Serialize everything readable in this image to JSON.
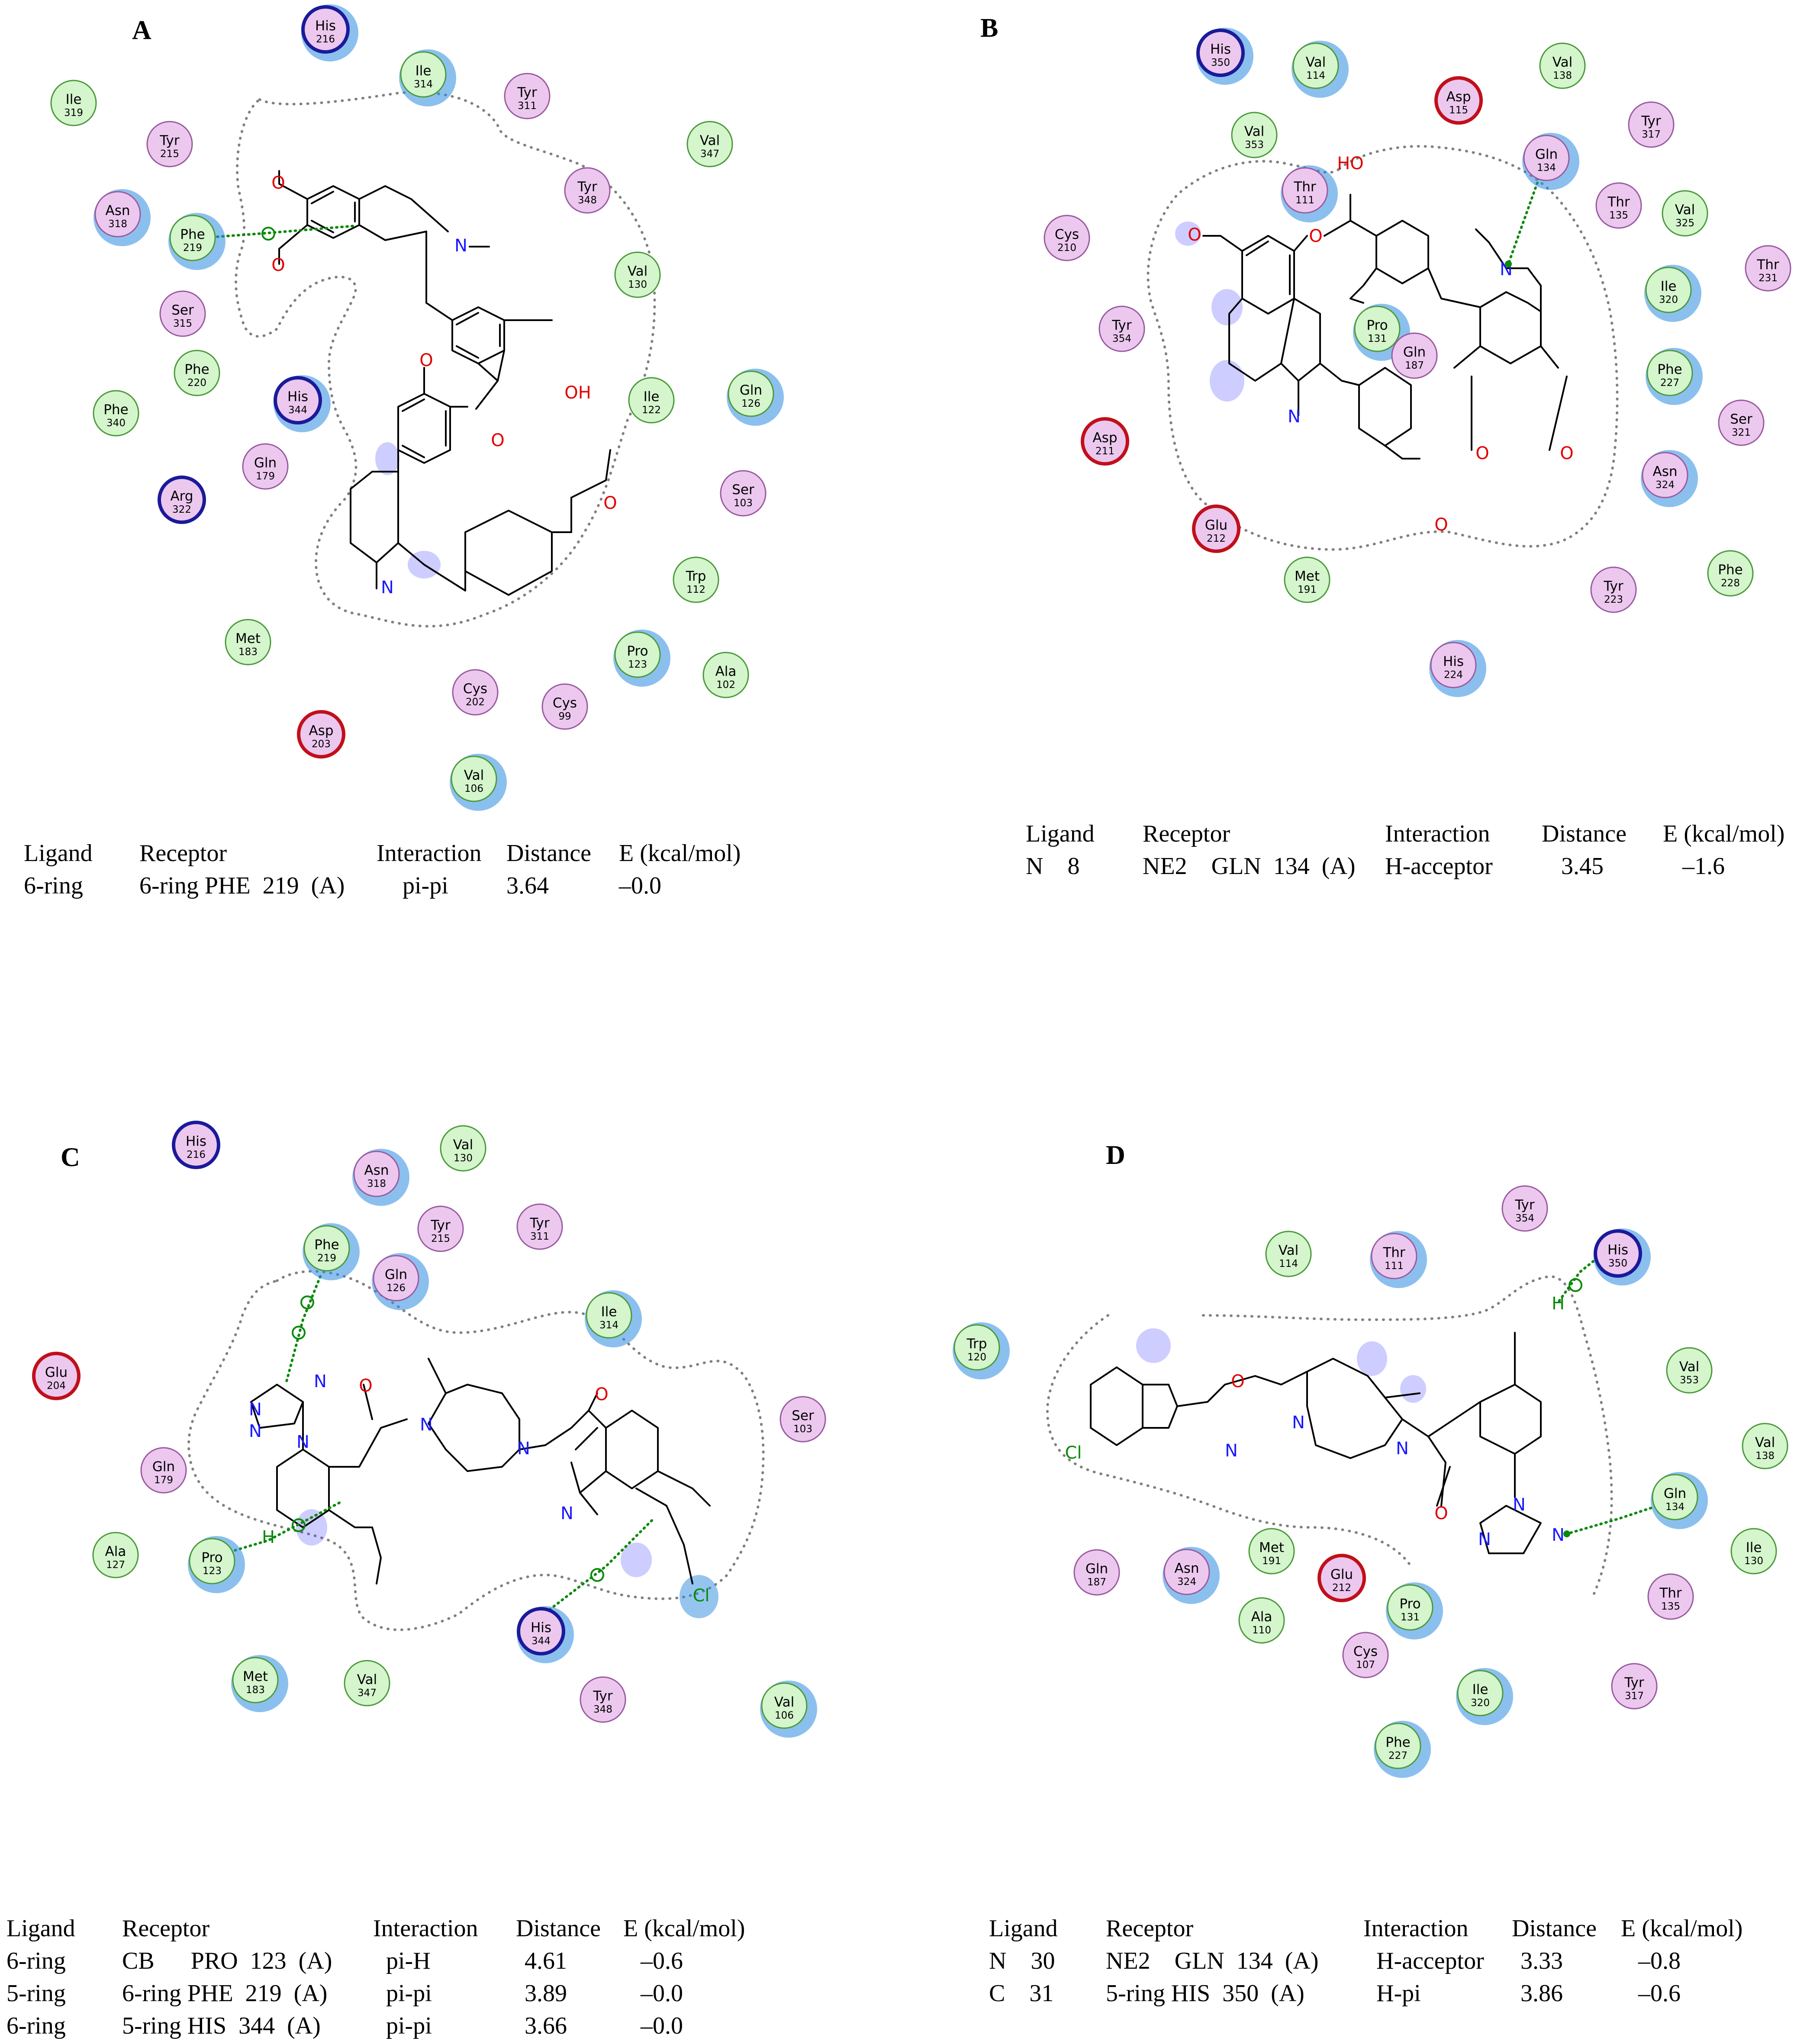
{
  "colors": {
    "green_residue_fill": "#d5f5cd",
    "green_residue_stroke": "#4a9a3a",
    "pink_residue_fill": "#ecc8ef",
    "pink_residue_stroke": "#9a5aa0",
    "basic_residue_stroke": "#1a1a9a",
    "acidic_residue_stroke": "#c0101a",
    "exposure_halo": "#2b8ce0",
    "interaction_line": "#0a8a0a",
    "nitrogen": "#1a1aff",
    "oxygen": "#e00000",
    "chlorine": "#0a8a0a"
  },
  "panels": [
    {
      "id": "A",
      "letter": "A",
      "residues": [
        {
          "name": "His",
          "num": "216",
          "kind": "basic"
        },
        {
          "name": "Ile",
          "num": "314",
          "kind": "green"
        },
        {
          "name": "Ile",
          "num": "319",
          "kind": "green"
        },
        {
          "name": "Tyr",
          "num": "311",
          "kind": "pink"
        },
        {
          "name": "Tyr",
          "num": "215",
          "kind": "pink"
        },
        {
          "name": "Val",
          "num": "347",
          "kind": "green"
        },
        {
          "name": "Asn",
          "num": "318",
          "kind": "pink"
        },
        {
          "name": "Phe",
          "num": "219",
          "kind": "green"
        },
        {
          "name": "Tyr",
          "num": "348",
          "kind": "pink"
        },
        {
          "name": "Val",
          "num": "130",
          "kind": "green"
        },
        {
          "name": "Ser",
          "num": "315",
          "kind": "pink"
        },
        {
          "name": "Phe",
          "num": "220",
          "kind": "green"
        },
        {
          "name": "His",
          "num": "344",
          "kind": "basic"
        },
        {
          "name": "Ile",
          "num": "122",
          "kind": "green"
        },
        {
          "name": "Gln",
          "num": "126",
          "kind": "green"
        },
        {
          "name": "Phe",
          "num": "340",
          "kind": "green"
        },
        {
          "name": "Gln",
          "num": "179",
          "kind": "pink"
        },
        {
          "name": "Arg",
          "num": "322",
          "kind": "basic"
        },
        {
          "name": "Ser",
          "num": "103",
          "kind": "pink"
        },
        {
          "name": "Trp",
          "num": "112",
          "kind": "green"
        },
        {
          "name": "Met",
          "num": "183",
          "kind": "green"
        },
        {
          "name": "Pro",
          "num": "123",
          "kind": "green"
        },
        {
          "name": "Ala",
          "num": "102",
          "kind": "green"
        },
        {
          "name": "Cys",
          "num": "202",
          "kind": "pink"
        },
        {
          "name": "Cys",
          "num": "99",
          "kind": "pink"
        },
        {
          "name": "Asp",
          "num": "203",
          "kind": "acidic"
        },
        {
          "name": "Val",
          "num": "106",
          "kind": "green"
        }
      ],
      "table": {
        "headers": [
          "Ligand",
          "Receptor",
          "Interaction",
          "Distance",
          "E (kcal/mol)"
        ],
        "rows": [
          [
            "6-ring",
            "6-ring PHE  219  (A)",
            "pi-pi",
            "3.64",
            "–0.0"
          ]
        ]
      }
    },
    {
      "id": "B",
      "letter": "B",
      "residues": [
        {
          "name": "His",
          "num": "350",
          "kind": "basic"
        },
        {
          "name": "Val",
          "num": "114",
          "kind": "green"
        },
        {
          "name": "Val",
          "num": "138",
          "kind": "green"
        },
        {
          "name": "Asp",
          "num": "115",
          "kind": "acidic"
        },
        {
          "name": "Tyr",
          "num": "317",
          "kind": "pink"
        },
        {
          "name": "Val",
          "num": "353",
          "kind": "green"
        },
        {
          "name": "Gln",
          "num": "134",
          "kind": "pink"
        },
        {
          "name": "Thr",
          "num": "111",
          "kind": "pink"
        },
        {
          "name": "Thr",
          "num": "135",
          "kind": "pink"
        },
        {
          "name": "Val",
          "num": "325",
          "kind": "green"
        },
        {
          "name": "Cys",
          "num": "210",
          "kind": "pink"
        },
        {
          "name": "Thr",
          "num": "231",
          "kind": "pink"
        },
        {
          "name": "Ile",
          "num": "320",
          "kind": "green"
        },
        {
          "name": "Tyr",
          "num": "354",
          "kind": "pink"
        },
        {
          "name": "Pro",
          "num": "131",
          "kind": "green"
        },
        {
          "name": "Gln",
          "num": "187",
          "kind": "pink"
        },
        {
          "name": "Phe",
          "num": "227",
          "kind": "green"
        },
        {
          "name": "Ser",
          "num": "321",
          "kind": "pink"
        },
        {
          "name": "Asp",
          "num": "211",
          "kind": "acidic"
        },
        {
          "name": "Asn",
          "num": "324",
          "kind": "pink"
        },
        {
          "name": "Glu",
          "num": "212",
          "kind": "acidic"
        },
        {
          "name": "Met",
          "num": "191",
          "kind": "green"
        },
        {
          "name": "Tyr",
          "num": "223",
          "kind": "pink"
        },
        {
          "name": "Phe",
          "num": "228",
          "kind": "green"
        },
        {
          "name": "His",
          "num": "224",
          "kind": "pink"
        }
      ],
      "table": {
        "headers": [
          "Ligand",
          "Receptor",
          "Interaction",
          "Distance",
          "E (kcal/mol)"
        ],
        "rows": [
          [
            "N    8",
            "NE2    GLN  134  (A)",
            "H-acceptor",
            "3.45",
            "–1.6"
          ]
        ]
      }
    },
    {
      "id": "C",
      "letter": "C",
      "residues": [
        {
          "name": "His",
          "num": "216",
          "kind": "basic"
        },
        {
          "name": "Val",
          "num": "130",
          "kind": "green"
        },
        {
          "name": "Asn",
          "num": "318",
          "kind": "pink"
        },
        {
          "name": "Phe",
          "num": "219",
          "kind": "green"
        },
        {
          "name": "Tyr",
          "num": "215",
          "kind": "pink"
        },
        {
          "name": "Tyr",
          "num": "311",
          "kind": "pink"
        },
        {
          "name": "Gln",
          "num": "126",
          "kind": "pink"
        },
        {
          "name": "Ile",
          "num": "314",
          "kind": "green"
        },
        {
          "name": "Glu",
          "num": "204",
          "kind": "acidic"
        },
        {
          "name": "Ser",
          "num": "103",
          "kind": "pink"
        },
        {
          "name": "Gln",
          "num": "179",
          "kind": "pink"
        },
        {
          "name": "Ala",
          "num": "127",
          "kind": "green"
        },
        {
          "name": "Pro",
          "num": "123",
          "kind": "green"
        },
        {
          "name": "His",
          "num": "344",
          "kind": "basic"
        },
        {
          "name": "Met",
          "num": "183",
          "kind": "green"
        },
        {
          "name": "Val",
          "num": "347",
          "kind": "green"
        },
        {
          "name": "Tyr",
          "num": "348",
          "kind": "pink"
        },
        {
          "name": "Val",
          "num": "106",
          "kind": "green"
        }
      ],
      "table": {
        "headers": [
          "Ligand",
          "Receptor",
          "Interaction",
          "Distance",
          "E (kcal/mol)"
        ],
        "rows": [
          [
            "6-ring",
            "CB      PRO  123  (A)",
            "pi-H",
            "4.61",
            "–0.6"
          ],
          [
            "5-ring",
            "6-ring PHE  219  (A)",
            "pi-pi",
            "3.89",
            "–0.0"
          ],
          [
            "6-ring",
            "5-ring HIS  344  (A)",
            "pi-pi",
            "3.66",
            "–0.0"
          ]
        ]
      }
    },
    {
      "id": "D",
      "letter": "D",
      "residues": [
        {
          "name": "Tyr",
          "num": "354",
          "kind": "pink"
        },
        {
          "name": "His",
          "num": "350",
          "kind": "basic"
        },
        {
          "name": "Val",
          "num": "114",
          "kind": "green"
        },
        {
          "name": "Thr",
          "num": "111",
          "kind": "pink"
        },
        {
          "name": "Trp",
          "num": "120",
          "kind": "green"
        },
        {
          "name": "Val",
          "num": "353",
          "kind": "green"
        },
        {
          "name": "Val",
          "num": "138",
          "kind": "green"
        },
        {
          "name": "Gln",
          "num": "134",
          "kind": "green"
        },
        {
          "name": "Ile",
          "num": "130",
          "kind": "green"
        },
        {
          "name": "Met",
          "num": "191",
          "kind": "green"
        },
        {
          "name": "Gln",
          "num": "187",
          "kind": "pink"
        },
        {
          "name": "Asn",
          "num": "324",
          "kind": "pink"
        },
        {
          "name": "Glu",
          "num": "212",
          "kind": "acidic"
        },
        {
          "name": "Pro",
          "num": "131",
          "kind": "green"
        },
        {
          "name": "Thr",
          "num": "135",
          "kind": "pink"
        },
        {
          "name": "Ala",
          "num": "110",
          "kind": "green"
        },
        {
          "name": "Cys",
          "num": "107",
          "kind": "pink"
        },
        {
          "name": "Ile",
          "num": "320",
          "kind": "green"
        },
        {
          "name": "Tyr",
          "num": "317",
          "kind": "pink"
        },
        {
          "name": "Phe",
          "num": "227",
          "kind": "green"
        }
      ],
      "table": {
        "headers": [
          "Ligand",
          "Receptor",
          "Interaction",
          "Distance",
          "E (kcal/mol)"
        ],
        "rows": [
          [
            "N    30",
            "NE2    GLN  134  (A)",
            "H-acceptor",
            "3.33",
            "–0.8"
          ],
          [
            "C    31",
            "5-ring HIS  350  (A)",
            "H-pi",
            "3.86",
            "–0.6"
          ]
        ]
      }
    }
  ],
  "atom_labels": {
    "N": "N",
    "O": "O",
    "OH": "OH",
    "HO": "HO",
    "Cl": "Cl",
    "H": "H"
  }
}
